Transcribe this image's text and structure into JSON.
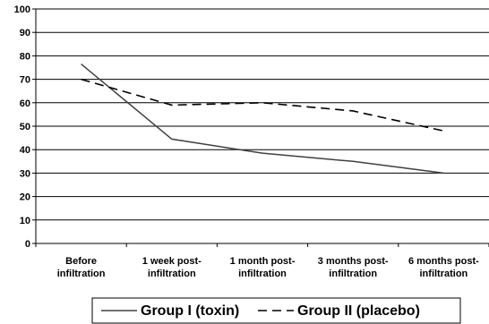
{
  "chart_data": {
    "type": "line",
    "categories": [
      [
        "Before",
        "infiltration"
      ],
      [
        "1 week post-",
        "infiltration"
      ],
      [
        "1 month post-",
        "infiltration"
      ],
      [
        "3 months post-",
        "infiltration"
      ],
      [
        "6 months post-",
        "infiltration"
      ]
    ],
    "series": [
      {
        "name": "Group I (toxin)",
        "values": [
          76.5,
          44.5,
          38.5,
          35,
          30
        ],
        "dash": "solid",
        "color": "#404040"
      },
      {
        "name": "Group II (placebo)",
        "values": [
          70,
          59,
          60,
          56.5,
          48
        ],
        "dash": "dashed",
        "color": "#000000"
      }
    ],
    "ylim": [
      0,
      100
    ],
    "yticks": [
      0,
      10,
      20,
      30,
      40,
      50,
      60,
      70,
      80,
      90,
      100
    ],
    "grid": true,
    "legend_position": "bottom",
    "title": "",
    "xlabel": "",
    "ylabel": ""
  }
}
